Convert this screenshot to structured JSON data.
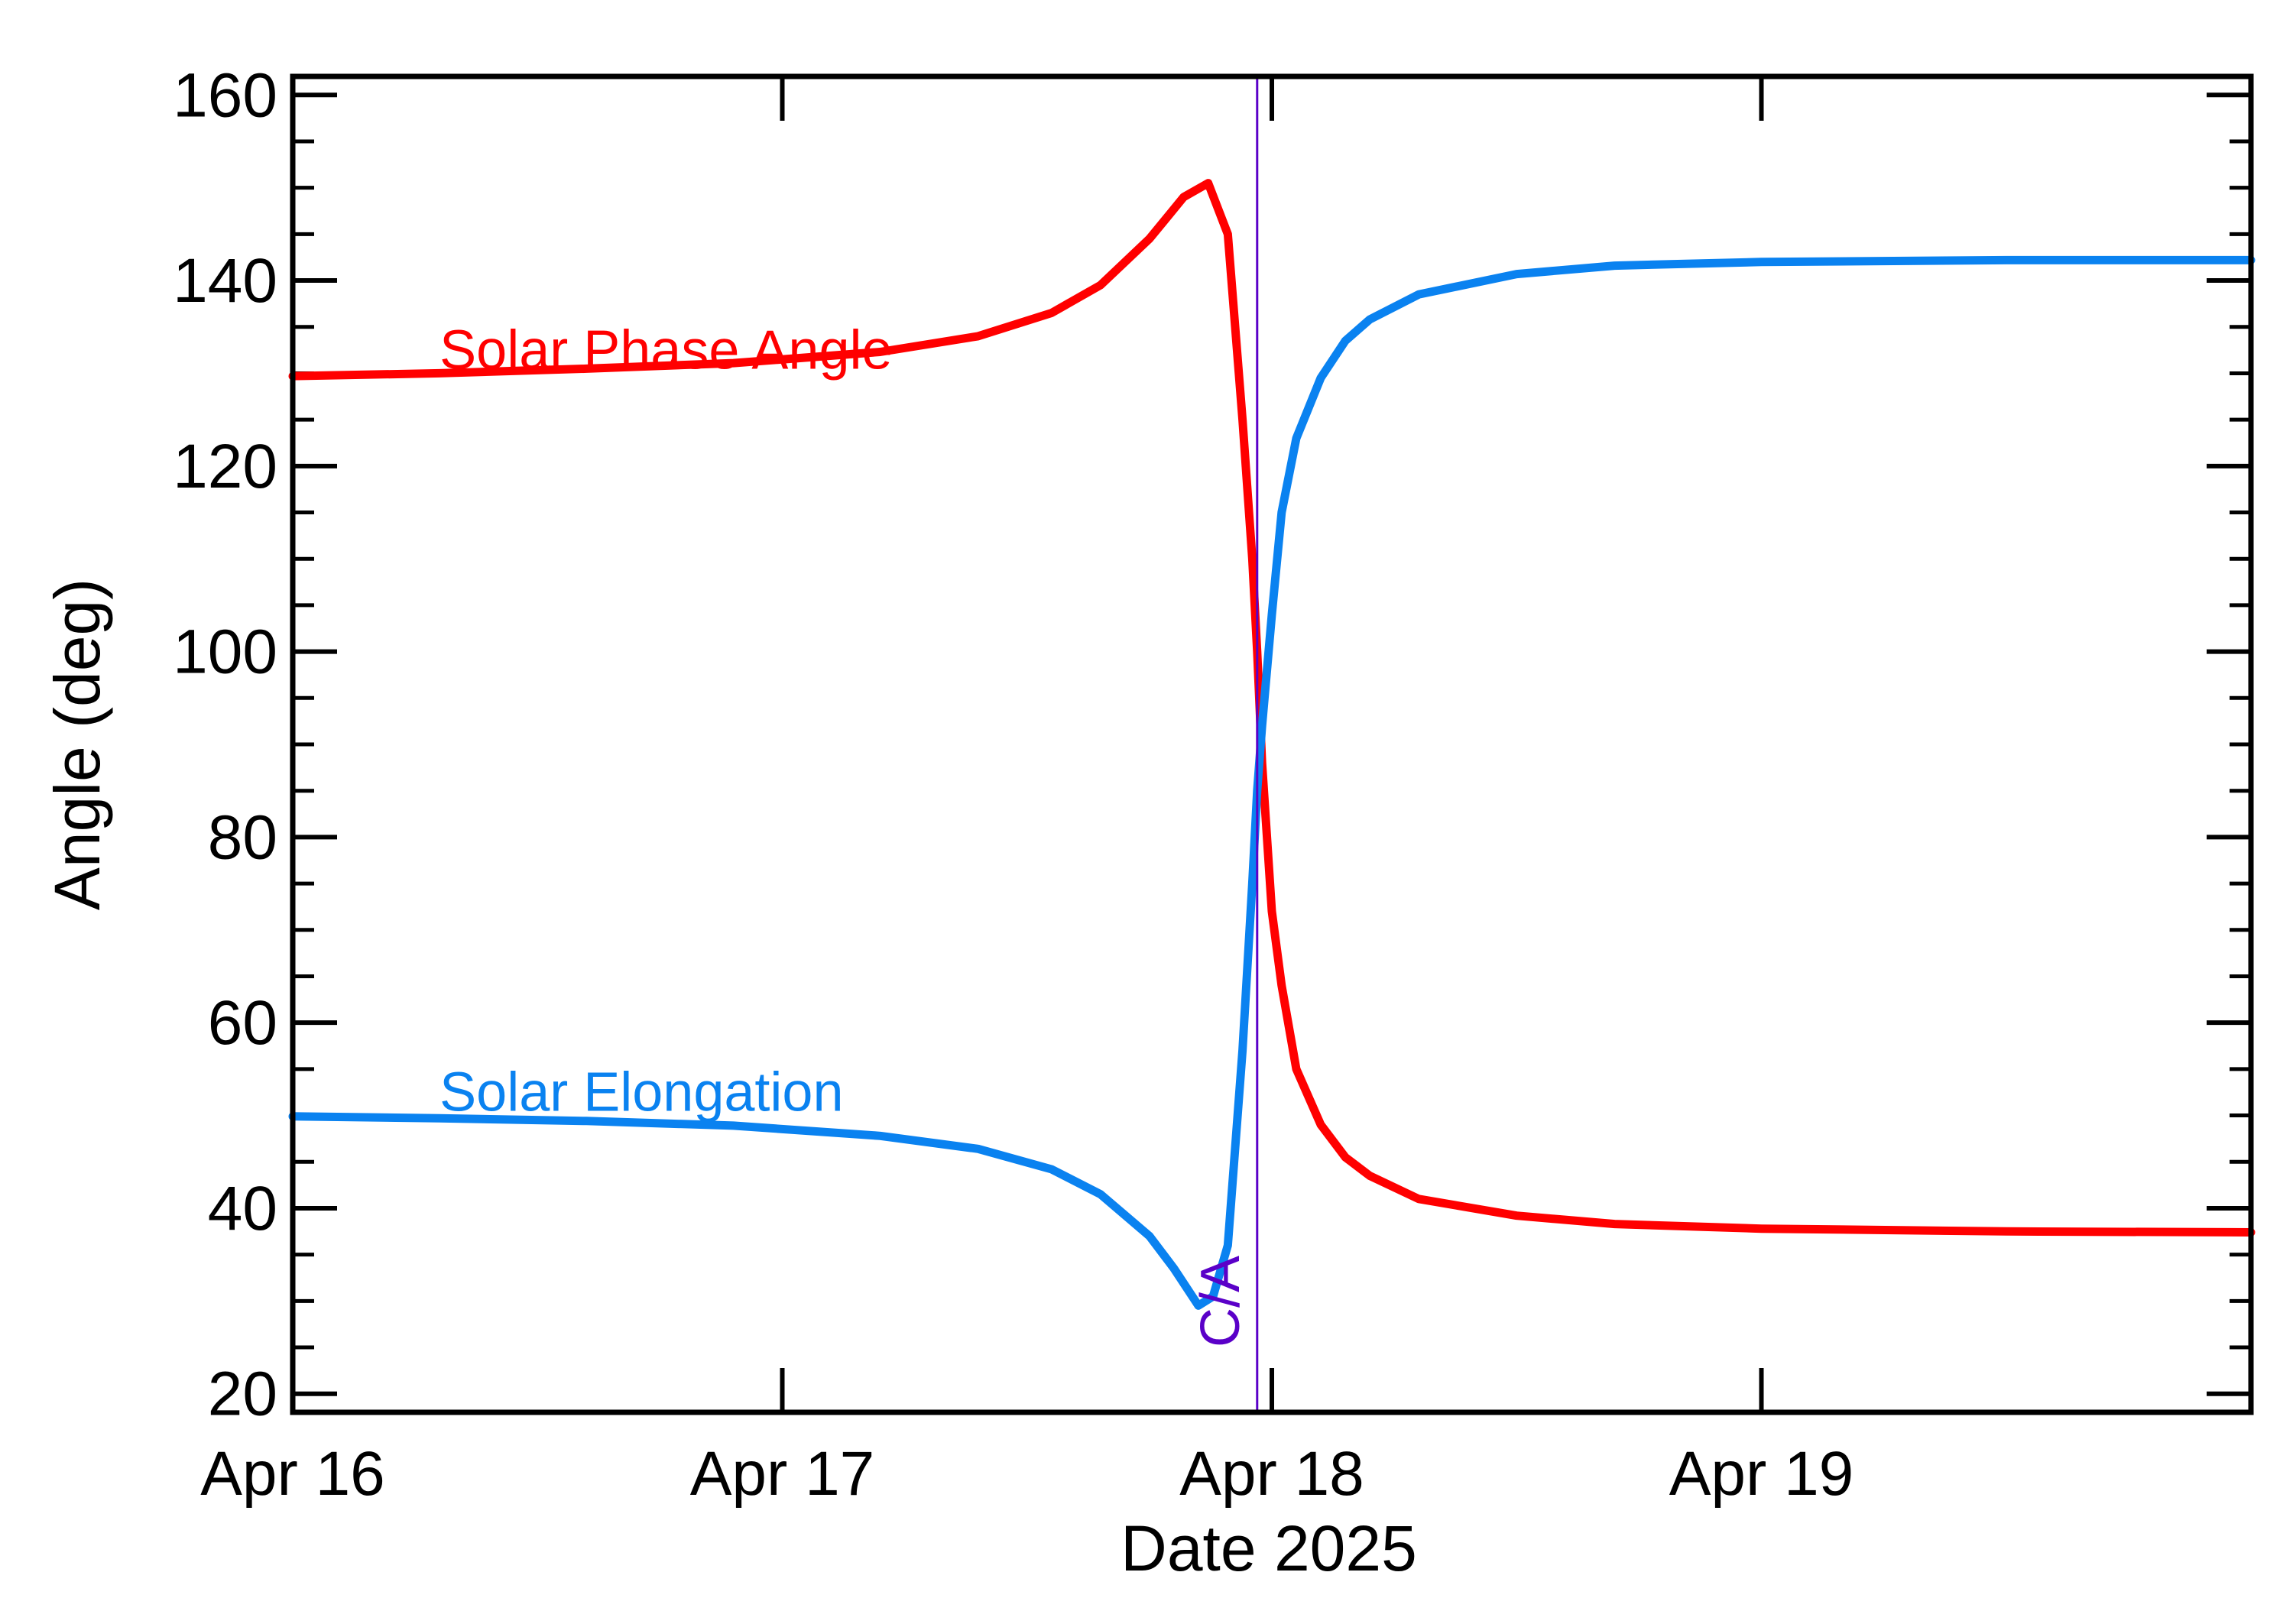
{
  "chart_data": {
    "type": "line",
    "xlabel": "Date 2025",
    "ylabel": "Angle (deg)",
    "xlim": [
      0,
      4
    ],
    "ylim": [
      18,
      162
    ],
    "x_ticks": [
      {
        "value": 0,
        "label": "Apr 16"
      },
      {
        "value": 1,
        "label": "Apr 17"
      },
      {
        "value": 2,
        "label": "Apr 18"
      },
      {
        "value": 3,
        "label": "Apr 19"
      }
    ],
    "y_ticks": [
      {
        "value": 20,
        "label": "20"
      },
      {
        "value": 40,
        "label": "40"
      },
      {
        "value": 60,
        "label": "60"
      },
      {
        "value": 80,
        "label": "80"
      },
      {
        "value": 100,
        "label": "100"
      },
      {
        "value": 120,
        "label": "120"
      },
      {
        "value": 140,
        "label": "140"
      },
      {
        "value": 160,
        "label": "160"
      }
    ],
    "ca_marker": {
      "x": 1.97,
      "label": "C/A",
      "color": "#5a00c8"
    },
    "series": [
      {
        "name": "Solar Phase Angle",
        "color": "#ff0000",
        "x": [
          0,
          0.3,
          0.6,
          0.9,
          1.2,
          1.4,
          1.55,
          1.65,
          1.75,
          1.82,
          1.87,
          1.91,
          1.94,
          1.96,
          1.97,
          1.98,
          2.0,
          2.02,
          2.05,
          2.1,
          2.15,
          2.2,
          2.3,
          2.5,
          2.7,
          3.0,
          3.5,
          4.0
        ],
        "y": [
          129.7,
          130.0,
          130.5,
          131.1,
          132.3,
          134.0,
          136.5,
          139.5,
          144.5,
          149.0,
          150.5,
          145.0,
          125.0,
          110.0,
          100.0,
          88.0,
          72.0,
          64.0,
          55.0,
          49.0,
          45.5,
          43.5,
          41.0,
          39.2,
          38.3,
          37.8,
          37.5,
          37.4
        ]
      },
      {
        "name": "Solar Elongation",
        "color": "#0a82f0",
        "x": [
          0,
          0.3,
          0.6,
          0.9,
          1.2,
          1.4,
          1.55,
          1.65,
          1.75,
          1.8,
          1.85,
          1.88,
          1.91,
          1.94,
          1.96,
          1.97,
          1.98,
          2.0,
          2.02,
          2.05,
          2.1,
          2.15,
          2.2,
          2.3,
          2.5,
          2.7,
          3.0,
          3.5,
          4.0
        ],
        "y": [
          49.9,
          49.7,
          49.4,
          48.9,
          47.8,
          46.4,
          44.2,
          41.5,
          37.0,
          33.5,
          29.5,
          30.5,
          36.0,
          57.0,
          75.0,
          85.0,
          92.0,
          104.0,
          115.0,
          123.0,
          129.5,
          133.5,
          135.8,
          138.5,
          140.7,
          141.6,
          142.0,
          142.2,
          142.2
        ]
      }
    ],
    "annotations": [
      {
        "text": "Solar Phase Angle",
        "x": 0.3,
        "y": 130.5,
        "color": "#ff0000"
      },
      {
        "text": "Solar Elongation",
        "x": 0.3,
        "y": 50.5,
        "color": "#0a82f0"
      }
    ],
    "grid": false
  }
}
